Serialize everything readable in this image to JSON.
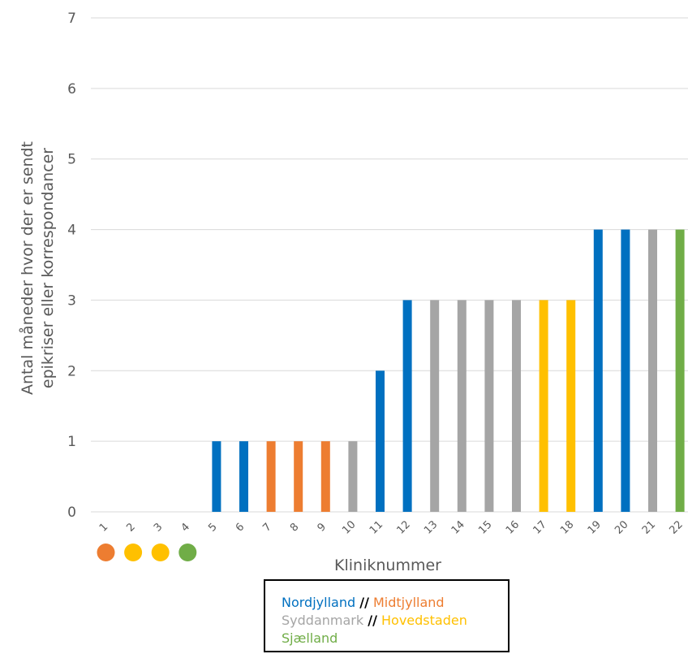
{
  "chart_data": {
    "type": "bar",
    "ylabel_line1": "Antal måneder hvor der er sendt",
    "ylabel_line2": "epikriser eller korrespondancer",
    "xlabel": "Kliniknummer",
    "ylim": [
      0,
      7
    ],
    "yticks": [
      0,
      1,
      2,
      3,
      4,
      5,
      6,
      7
    ],
    "grid": true,
    "categories": [
      "1",
      "2",
      "3",
      "4",
      "5",
      "6",
      "7",
      "8",
      "9",
      "10",
      "11",
      "12",
      "13",
      "14",
      "15",
      "16",
      "17",
      "18",
      "19",
      "20",
      "21",
      "22"
    ],
    "values": [
      0,
      0,
      0,
      0,
      1,
      1,
      1,
      1,
      1,
      1,
      2,
      3,
      3,
      3,
      3,
      3,
      3,
      3,
      4,
      4,
      4,
      4
    ],
    "regions": [
      "Midtjylland",
      "Hovedstaden",
      "Hovedstaden",
      "Sjælland",
      "Nordjylland",
      "Nordjylland",
      "Midtjylland",
      "Midtjylland",
      "Midtjylland",
      "Syddanmark",
      "Nordjylland",
      "Nordjylland",
      "Syddanmark",
      "Syddanmark",
      "Syddanmark",
      "Syddanmark",
      "Hovedstaden",
      "Hovedstaden",
      "Nordjylland",
      "Nordjylland",
      "Syddanmark",
      "Sjælland"
    ],
    "region_colors": {
      "Nordjylland": "#0070C0",
      "Midtjylland": "#ED7D31",
      "Syddanmark": "#A5A5A5",
      "Hovedstaden": "#FFC000",
      "Sjælland": "#70AD47"
    },
    "zero_markers": [
      {
        "category": "1",
        "region": "Midtjylland"
      },
      {
        "category": "2",
        "region": "Hovedstaden"
      },
      {
        "category": "3",
        "region": "Hovedstaden"
      },
      {
        "category": "4",
        "region": "Sjælland"
      }
    ],
    "legend": {
      "line1_a": "Nordjylland",
      "line1_sep": "//",
      "line1_b": "Midtjylland",
      "line2_a": "Syddanmark",
      "line2_sep": "//",
      "line2_b": "Hovedstaden",
      "line3": "Sjælland",
      "placement": "bottom-center"
    }
  }
}
